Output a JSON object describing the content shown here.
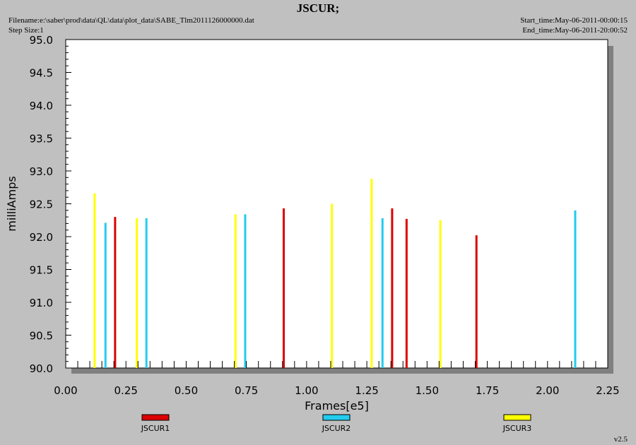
{
  "header": {
    "title": "JSCUR;",
    "filename": "Filename:e:\\saber\\prod\\data\\QL\\data\\plot_data\\SABE_Tlm2011126000000.dat",
    "step_size": "Step Size:1",
    "start_time": "Start_time:May-06-2011-00:00:15",
    "end_time": "End_time:May-06-2011-20:00:52"
  },
  "version": "v2.5",
  "colors": {
    "background": "#c0c0c0",
    "plot_area": "#ffffff",
    "shadow": "#808080",
    "JSCUR1": "#dd0000",
    "JSCUR2": "#22ccee",
    "JSCUR3": "#ffff00"
  },
  "chart_data": {
    "type": "bar",
    "title": "JSCUR;",
    "xlabel": "Frames[e5]",
    "ylabel": "milliAmps",
    "xlim": [
      0,
      2.25
    ],
    "ylim": [
      90.0,
      95.0
    ],
    "xticks": [
      "0.00",
      "0.25",
      "0.50",
      "0.75",
      "1.00",
      "1.25",
      "1.50",
      "1.75",
      "2.00",
      "2.25"
    ],
    "yticks": [
      "90.0",
      "90.5",
      "91.0",
      "91.5",
      "92.0",
      "92.5",
      "93.0",
      "93.5",
      "94.0",
      "94.5",
      "95.0"
    ],
    "grid": false,
    "legend_position": "bottom",
    "series": [
      {
        "name": "JSCUR1",
        "color": "#dd0000",
        "points": [
          [
            0.205,
            92.3
          ],
          [
            0.905,
            92.43
          ],
          [
            1.355,
            92.43
          ],
          [
            1.415,
            92.27
          ],
          [
            1.705,
            92.02
          ]
        ]
      },
      {
        "name": "JSCUR2",
        "color": "#22ccee",
        "points": [
          [
            0.165,
            92.21
          ],
          [
            0.335,
            92.28
          ],
          [
            0.745,
            92.34
          ],
          [
            1.315,
            92.28
          ],
          [
            2.115,
            92.4
          ]
        ]
      },
      {
        "name": "JSCUR3",
        "color": "#ffff00",
        "points": [
          [
            0.12,
            92.66
          ],
          [
            0.295,
            92.28
          ],
          [
            0.705,
            92.34
          ],
          [
            1.105,
            92.5
          ],
          [
            1.27,
            92.88
          ],
          [
            1.555,
            92.25
          ]
        ]
      }
    ]
  }
}
